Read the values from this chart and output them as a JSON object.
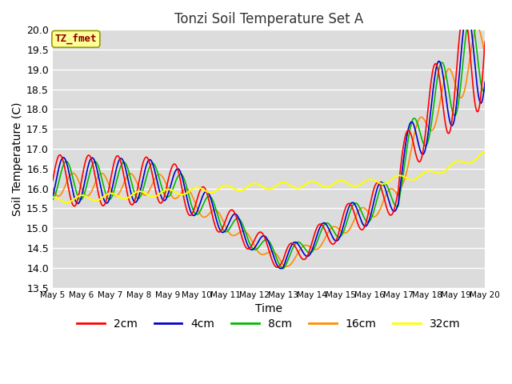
{
  "title": "Tonzi Soil Temperature Set A",
  "xlabel": "Time",
  "ylabel": "Soil Temperature (C)",
  "annotation": "TZ_fmet",
  "annotation_color": "#8B0000",
  "annotation_bg": "#FFFF99",
  "ylim": [
    13.5,
    20.0
  ],
  "yticks": [
    13.5,
    14.0,
    14.5,
    15.0,
    15.5,
    16.0,
    16.5,
    17.0,
    17.5,
    18.0,
    18.5,
    19.0,
    19.5,
    20.0
  ],
  "xtick_labels": [
    "May 5",
    "May 6",
    "May 7",
    "May 8",
    "May 9",
    "May 10",
    "May 11",
    "May 12",
    "May 13",
    "May 14",
    "May 15",
    "May 16",
    "May 17",
    "May 18",
    "May 19",
    "May 20"
  ],
  "series": {
    "2cm": {
      "color": "#FF0000",
      "linewidth": 1.2
    },
    "4cm": {
      "color": "#0000CC",
      "linewidth": 1.2
    },
    "8cm": {
      "color": "#00BB00",
      "linewidth": 1.2
    },
    "16cm": {
      "color": "#FF8C00",
      "linewidth": 1.2
    },
    "32cm": {
      "color": "#FFFF00",
      "linewidth": 1.5
    }
  },
  "fig_bg": "#FFFFFF",
  "plot_bg": "#DCDCDC",
  "grid_color": "#FFFFFF",
  "n_points": 720,
  "days": 15
}
